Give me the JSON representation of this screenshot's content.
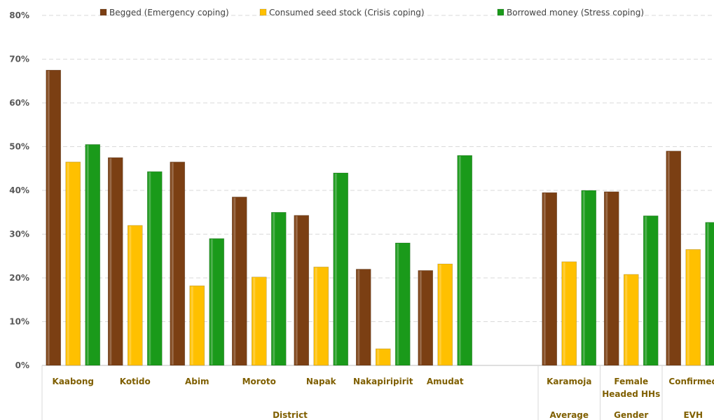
{
  "chart_data": {
    "type": "bar",
    "ylim": [
      0,
      80
    ],
    "y_ticks": [
      "0%",
      "10%",
      "20%",
      "30%",
      "40%",
      "50%",
      "60%",
      "70%",
      "80%"
    ],
    "grid": true,
    "legend_position": "top",
    "categories": [
      [
        "Kaabong"
      ],
      [
        "Kotido"
      ],
      [
        "Abim"
      ],
      [
        "Moroto"
      ],
      [
        "Napak"
      ],
      [
        "Nakapiripirit"
      ],
      [
        "Amudat"
      ],
      [
        ""
      ],
      [
        "Karamoja"
      ],
      [
        "Female",
        "Headed HHs"
      ],
      [
        "Confirmed"
      ]
    ],
    "groups": [
      "District",
      "Average",
      "Gender",
      "EVH"
    ],
    "series": [
      {
        "name": "Begged (Emergency coping)",
        "color": "#7b3f13",
        "values": [
          67.5,
          47.5,
          46.5,
          38.5,
          34.3,
          22.0,
          21.7,
          null,
          39.5,
          39.7,
          49.0
        ]
      },
      {
        "name": "Consumed seed stock (Crisis coping)",
        "color": "#ffc000",
        "values": [
          46.5,
          32.0,
          18.2,
          20.2,
          22.5,
          3.8,
          23.2,
          null,
          23.7,
          20.8,
          26.5
        ]
      },
      {
        "name": "Borrowed money (Stress coping)",
        "color": "#1a9a1a",
        "values": [
          50.5,
          44.3,
          29.0,
          35.0,
          44.0,
          28.0,
          48.0,
          null,
          40.0,
          34.2,
          32.7
        ]
      }
    ]
  }
}
